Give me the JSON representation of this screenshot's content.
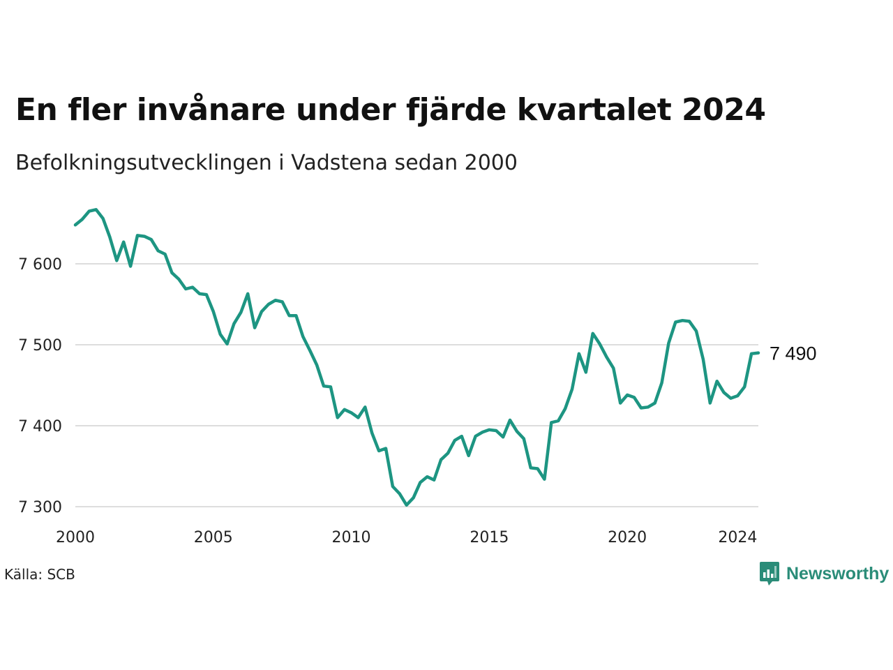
{
  "title": "En fler invånare under fjärde kvartalet 2024",
  "subtitle": "Befolkningsutvecklingen i Vadstena sedan 2000",
  "source": "Källa: SCB",
  "brand": {
    "name": "Newsworthy",
    "icon": "newsworthy-logo-icon",
    "color": "#2a8c78"
  },
  "chart_data": {
    "type": "line",
    "title": "En fler invånare under fjärde kvartalet 2024",
    "subtitle": "Befolkningsutvecklingen i Vadstena sedan 2000",
    "xlabel": "",
    "ylabel": "",
    "x_ticks": [
      {
        "value": 2000,
        "label": "2000"
      },
      {
        "value": 2005,
        "label": "2005"
      },
      {
        "value": 2010,
        "label": "2010"
      },
      {
        "value": 2015,
        "label": "2015"
      },
      {
        "value": 2020,
        "label": "2020"
      },
      {
        "value": 2024,
        "label": "2024"
      }
    ],
    "y_ticks": [
      {
        "value": 7300,
        "label": "7 300"
      },
      {
        "value": 7400,
        "label": "7 400"
      },
      {
        "value": 7500,
        "label": "7 500"
      },
      {
        "value": 7600,
        "label": "7 600"
      }
    ],
    "xlim": [
      2000,
      2024.75
    ],
    "ylim": [
      7290,
      7680
    ],
    "grid": "horizontal",
    "line_color": "#1d9582",
    "end_label": "7 490",
    "series": [
      {
        "x": [
          "2000Q1",
          "2000Q2",
          "2000Q3",
          "2000Q4",
          "2001Q1",
          "2001Q2",
          "2001Q3",
          "2001Q4",
          "2002Q1",
          "2002Q2",
          "2002Q3",
          "2002Q4",
          "2003Q1",
          "2003Q2",
          "2003Q3",
          "2003Q4",
          "2004Q1",
          "2004Q2",
          "2004Q3",
          "2004Q4",
          "2005Q1",
          "2005Q2",
          "2005Q3",
          "2005Q4",
          "2006Q1",
          "2006Q2",
          "2006Q3",
          "2006Q4",
          "2007Q1",
          "2007Q2",
          "2007Q3",
          "2007Q4",
          "2008Q1",
          "2008Q2",
          "2008Q3",
          "2008Q4",
          "2009Q1",
          "2009Q2",
          "2009Q3",
          "2009Q4",
          "2010Q1",
          "2010Q2",
          "2010Q3",
          "2010Q4",
          "2011Q1",
          "2011Q2",
          "2011Q3",
          "2011Q4",
          "2012Q1",
          "2012Q2",
          "2012Q3",
          "2012Q4",
          "2013Q1",
          "2013Q2",
          "2013Q3",
          "2013Q4",
          "2014Q1",
          "2014Q2",
          "2014Q3",
          "2014Q4",
          "2015Q1",
          "2015Q2",
          "2015Q3",
          "2015Q4",
          "2016Q1",
          "2016Q2",
          "2016Q3",
          "2016Q4",
          "2017Q1",
          "2017Q2",
          "2017Q3",
          "2017Q4",
          "2018Q1",
          "2018Q2",
          "2018Q3",
          "2018Q4",
          "2019Q1",
          "2019Q2",
          "2019Q3",
          "2019Q4",
          "2020Q1",
          "2020Q2",
          "2020Q3",
          "2020Q4",
          "2021Q1",
          "2021Q2",
          "2021Q3",
          "2021Q4",
          "2022Q1",
          "2022Q2",
          "2022Q3",
          "2022Q4",
          "2023Q1",
          "2023Q2",
          "2023Q3",
          "2023Q4",
          "2024Q1",
          "2024Q2",
          "2024Q3",
          "2024Q4"
        ],
        "y": [
          7648,
          7655,
          7665,
          7667,
          7656,
          7633,
          7604,
          7627,
          7597,
          7635,
          7634,
          7630,
          7616,
          7612,
          7589,
          7581,
          7569,
          7571,
          7563,
          7562,
          7541,
          7513,
          7501,
          7526,
          7540,
          7563,
          7521,
          7541,
          7550,
          7555,
          7553,
          7536,
          7536,
          7510,
          7493,
          7475,
          7449,
          7448,
          7410,
          7420,
          7416,
          7410,
          7423,
          7391,
          7369,
          7372,
          7325,
          7316,
          7302,
          7311,
          7330,
          7337,
          7333,
          7358,
          7366,
          7382,
          7387,
          7363,
          7387,
          7392,
          7395,
          7394,
          7386,
          7407,
          7393,
          7384,
          7348,
          7347,
          7334,
          7404,
          7406,
          7421,
          7445,
          7489,
          7466,
          7514,
          7501,
          7485,
          7471,
          7428,
          7438,
          7435,
          7422,
          7423,
          7428,
          7453,
          7502,
          7528,
          7530,
          7529,
          7517,
          7482,
          7428,
          7455,
          7441,
          7434,
          7437,
          7448,
          7489,
          7490
        ]
      }
    ]
  }
}
